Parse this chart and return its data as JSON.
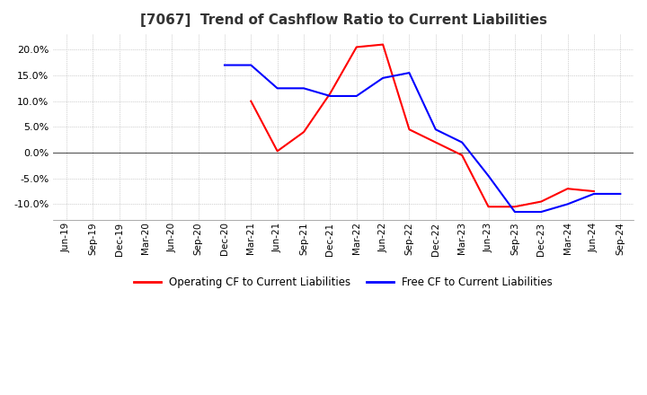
{
  "title": "[7067]  Trend of Cashflow Ratio to Current Liabilities",
  "x_labels": [
    "Jun-19",
    "Sep-19",
    "Dec-19",
    "Mar-20",
    "Jun-20",
    "Sep-20",
    "Dec-20",
    "Mar-21",
    "Jun-21",
    "Sep-21",
    "Dec-21",
    "Mar-22",
    "Jun-22",
    "Sep-22",
    "Dec-22",
    "Mar-23",
    "Jun-23",
    "Sep-23",
    "Dec-23",
    "Mar-24",
    "Jun-24",
    "Sep-24"
  ],
  "op_x": [
    7,
    8,
    9,
    10,
    11,
    12,
    13,
    14,
    15,
    16,
    17,
    18,
    19,
    20
  ],
  "op_y": [
    10.0,
    0.3,
    4.0,
    11.5,
    20.5,
    21.0,
    4.5,
    2.0,
    -0.5,
    -10.5,
    -10.5,
    -9.5,
    -7.0,
    -7.5
  ],
  "free_x": [
    6,
    7,
    8,
    9,
    10,
    11,
    12,
    13,
    14,
    15,
    16,
    17,
    18,
    19,
    20,
    21
  ],
  "free_y": [
    17.0,
    17.0,
    12.5,
    12.5,
    11.0,
    11.0,
    14.5,
    15.5,
    4.5,
    2.0,
    -4.5,
    -11.5,
    -11.5,
    -10.0,
    -8.0,
    -8.0
  ],
  "operating_cf_color": "#ff0000",
  "free_cf_color": "#0000ff",
  "yticks": [
    -10.0,
    -5.0,
    0.0,
    5.0,
    10.0,
    15.0,
    20.0
  ],
  "ylim": [
    -13.0,
    23.0
  ],
  "background_color": "#ffffff",
  "grid_color": "#aaaaaa",
  "legend_labels": [
    "Operating CF to Current Liabilities",
    "Free CF to Current Liabilities"
  ]
}
